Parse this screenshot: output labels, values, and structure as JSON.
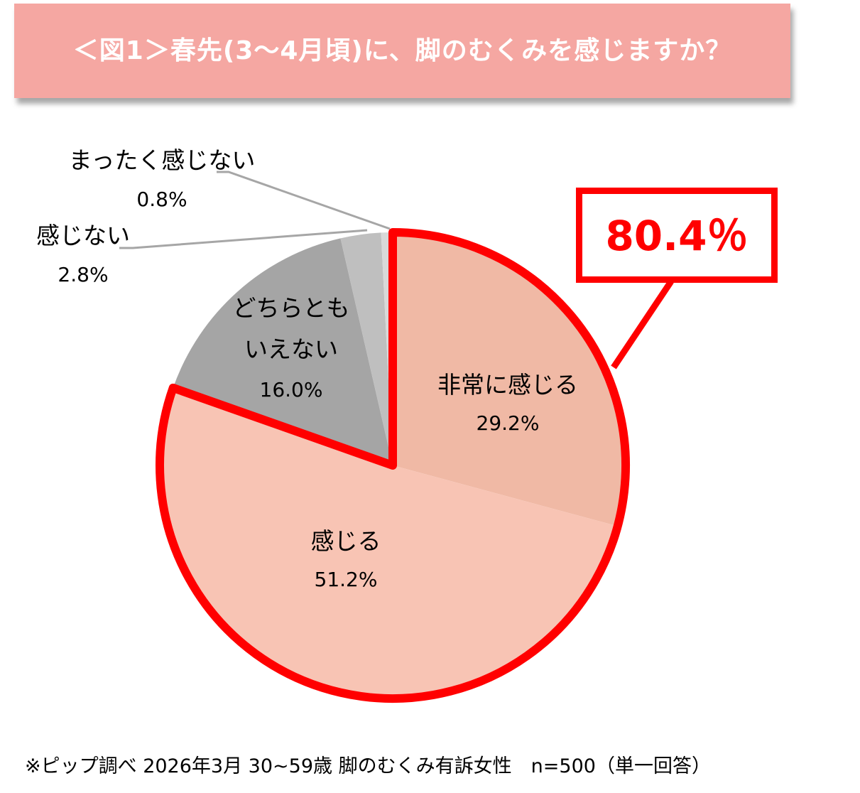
{
  "header": {
    "title": "＜図1＞春先(3～4月頃)に、脚のむくみを感じますか？",
    "banner_color": "#f5a7a2"
  },
  "callout": {
    "value": "80.4％",
    "color": "#ff0000",
    "covers": [
      "非常に感じる",
      "感じる"
    ]
  },
  "footnote": "※ピップ調べ 2026年3月 30~59歳 脚のむくみ有訴女性　n=500（単一回答）",
  "chart_data": {
    "type": "pie",
    "title": "＜図1＞春先(3～4月頃)に、脚のむくみを感じますか？",
    "start_angle": "12 o'clock",
    "direction": "clockwise",
    "categories": [
      "非常に感じる",
      "感じる",
      "どちらともいえない",
      "感じない",
      "まったく感じない"
    ],
    "values": [
      29.2,
      51.2,
      16.0,
      2.8,
      0.8
    ],
    "unit": "%",
    "colors": [
      "#f0b9a5",
      "#f8c4b4",
      "#a5a5a5",
      "#bfbfbf",
      "#d9d9d9"
    ],
    "labels": [
      {
        "name": "非常に感じる",
        "value": "29.2%",
        "position": "inside"
      },
      {
        "name": "感じる",
        "value": "51.2%",
        "position": "inside"
      },
      {
        "name_line1": "どちらとも",
        "name_line2": "いえない",
        "value": "16.0%",
        "position": "inside"
      },
      {
        "name": "感じない",
        "value": "2.8%",
        "position": "outside-leader"
      },
      {
        "name": "まったく感じない",
        "value": "0.8%",
        "position": "outside-leader"
      }
    ],
    "highlight": {
      "slices": [
        "非常に感じる",
        "感じる"
      ],
      "combined_value": 80.4,
      "outline_color": "#ff0000"
    },
    "n": 500
  }
}
